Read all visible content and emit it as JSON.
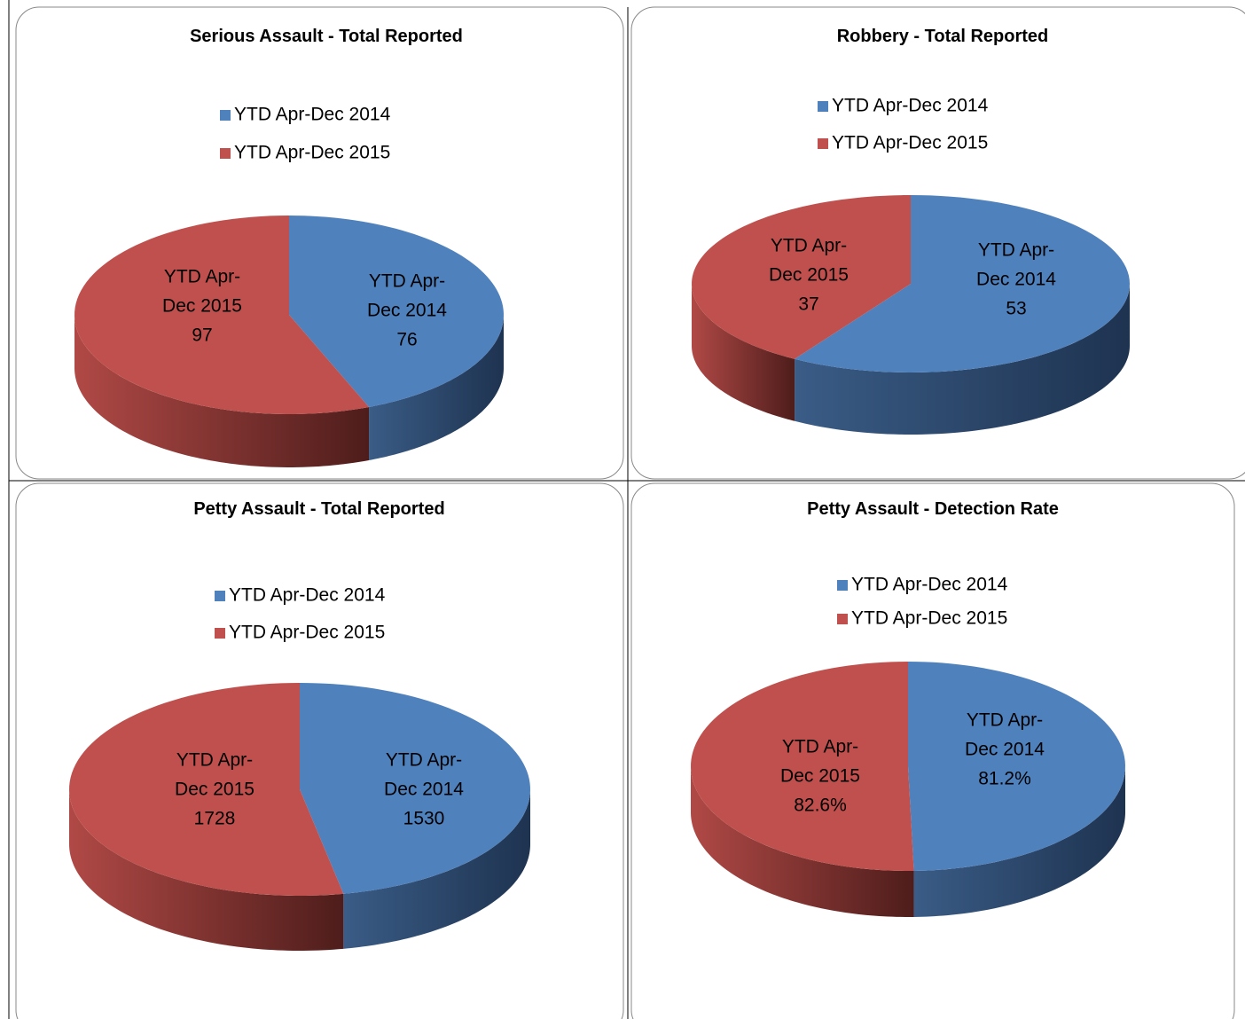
{
  "chart_data": [
    {
      "type": "pie",
      "title": "Serious Assault - Total Reported",
      "categories": [
        "YTD Apr-Dec 2014",
        "YTD Apr-Dec 2015"
      ],
      "values": [
        76,
        97
      ],
      "colors": [
        "#4f81bd",
        "#c0504d"
      ]
    },
    {
      "type": "pie",
      "title": "Robbery - Total Reported",
      "categories": [
        "YTD Apr-Dec 2014",
        "YTD Apr-Dec 2015"
      ],
      "values": [
        53,
        37
      ],
      "colors": [
        "#4f81bd",
        "#c0504d"
      ]
    },
    {
      "type": "pie",
      "title": "Petty Assault - Total Reported",
      "categories": [
        "YTD Apr-Dec 2014",
        "YTD Apr-Dec 2015"
      ],
      "values": [
        1530,
        1728
      ],
      "colors": [
        "#4f81bd",
        "#c0504d"
      ]
    },
    {
      "type": "pie",
      "title": "Petty Assault - Detection Rate",
      "categories": [
        "YTD Apr-Dec 2014",
        "YTD Apr-Dec 2015"
      ],
      "values": [
        81.2,
        82.6
      ],
      "value_labels": [
        "81.2%",
        "82.6%"
      ],
      "colors": [
        "#4f81bd",
        "#c0504d"
      ]
    }
  ]
}
